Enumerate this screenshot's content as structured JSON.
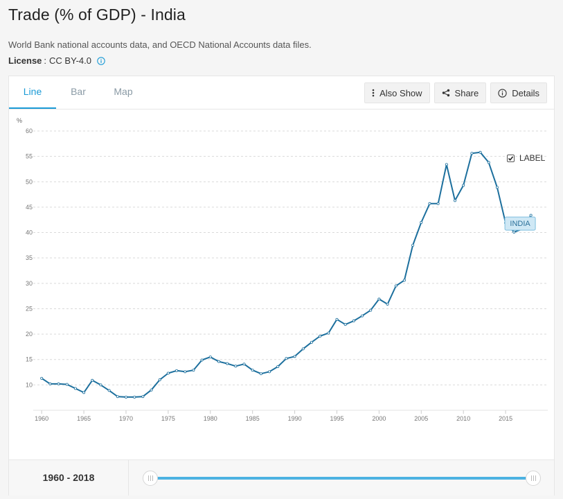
{
  "title": "Trade (% of GDP) - India",
  "source": "World Bank national accounts data, and OECD National Accounts data files.",
  "license": {
    "label": "License",
    "value": "CC BY-4.0"
  },
  "tabs": [
    {
      "label": "Line",
      "active": true
    },
    {
      "label": "Bar",
      "active": false
    },
    {
      "label": "Map",
      "active": false
    }
  ],
  "actions": {
    "also_show": "Also Show",
    "share": "Share",
    "details": "Details"
  },
  "label_toggle": {
    "text": "LABEL",
    "checked": true
  },
  "range": {
    "text": "1960 - 2018",
    "start": 1960,
    "end": 2018
  },
  "colors": {
    "accent": "#1a9ad6",
    "line": "#1c6f9d",
    "slider": "#4cb2e2",
    "label_bg": "#cfe8f5",
    "label_border": "#7fbfdf"
  },
  "chart_data": {
    "type": "line",
    "title": "",
    "xlabel": "",
    "ylabel": "%",
    "ylim": [
      5,
      60
    ],
    "y_ticks": [
      10,
      15,
      20,
      25,
      30,
      35,
      40,
      45,
      50,
      55,
      60
    ],
    "x_ticks": [
      1960,
      1965,
      1970,
      1975,
      1980,
      1985,
      1990,
      1995,
      2000,
      2005,
      2010,
      2015
    ],
    "grid": true,
    "series": [
      {
        "name": "INDIA",
        "x": [
          1960,
          1961,
          1962,
          1963,
          1964,
          1965,
          1966,
          1967,
          1968,
          1969,
          1970,
          1971,
          1972,
          1973,
          1974,
          1975,
          1976,
          1977,
          1978,
          1979,
          1980,
          1981,
          1982,
          1983,
          1984,
          1985,
          1986,
          1987,
          1988,
          1989,
          1990,
          1991,
          1992,
          1993,
          1994,
          1995,
          1996,
          1997,
          1998,
          1999,
          2000,
          2001,
          2002,
          2003,
          2004,
          2005,
          2006,
          2007,
          2008,
          2009,
          2010,
          2011,
          2012,
          2013,
          2014,
          2015,
          2016,
          2017,
          2018
        ],
        "values": [
          11.3,
          10.2,
          10.2,
          10.1,
          9.3,
          8.5,
          10.9,
          10.0,
          8.9,
          7.7,
          7.6,
          7.6,
          7.7,
          9.0,
          11.0,
          12.3,
          12.8,
          12.6,
          12.9,
          14.9,
          15.5,
          14.6,
          14.2,
          13.7,
          14.1,
          12.9,
          12.2,
          12.6,
          13.6,
          15.2,
          15.6,
          17.1,
          18.4,
          19.6,
          20.2,
          22.9,
          21.9,
          22.6,
          23.6,
          24.7,
          26.9,
          25.9,
          29.5,
          30.6,
          37.5,
          42.0,
          45.7,
          45.7,
          53.4,
          46.3,
          49.3,
          55.6,
          55.8,
          53.8,
          48.9,
          41.9,
          40.1,
          40.7,
          43.4
        ]
      }
    ]
  }
}
